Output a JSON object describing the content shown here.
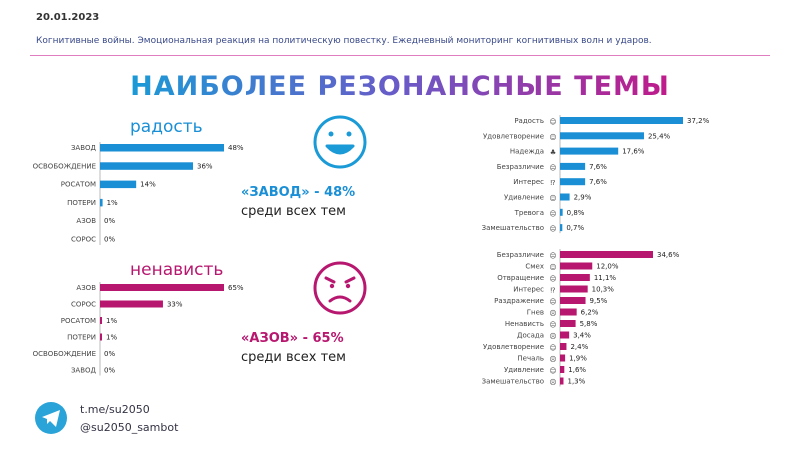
{
  "header": {
    "date": "20.01.2023",
    "subtitle": "Когнитивные войны. Эмоциональная реакция на политическую повестку. Ежедневный мониторинг когнитивных волн и ударов.",
    "title": "НАИБОЛЕЕ РЕЗОНАНСНЫЕ ТЕМЫ"
  },
  "colors": {
    "blue": "#1a8fd6",
    "magenta": "#b8176f"
  },
  "joy_section": {
    "title": "радость",
    "stat_value": "«ЗАВОД» - 48%",
    "stat_text": "среди всех тем",
    "icon": "smiling-face-icon"
  },
  "hate_section": {
    "title": "ненависть",
    "stat_value": "«АЗОВ» - 65%",
    "stat_text": "среди всех тем",
    "icon": "angry-face-icon"
  },
  "footer": {
    "link1": "t.me/su2050",
    "link2": "@su2050_sambot",
    "icon": "telegram-icon"
  },
  "chart_data": [
    {
      "type": "bar",
      "orientation": "horizontal",
      "title": "радость",
      "categories": [
        "ЗАВОД",
        "ОСВОБОЖДЕНИЕ",
        "РОСАТОМ",
        "ПОТЕРИ",
        "АЗОВ",
        "СОРОС"
      ],
      "values": [
        48,
        36,
        14,
        1,
        0,
        0
      ],
      "labels": [
        "48%",
        "36%",
        "14%",
        "1%",
        "0%",
        "0%"
      ],
      "max": 48,
      "color": "#1a8fd6"
    },
    {
      "type": "bar",
      "orientation": "horizontal",
      "title": "ненависть",
      "categories": [
        "АЗОВ",
        "СОРОС",
        "РОСАТОМ",
        "ПОТЕРИ",
        "ОСВОБОЖДЕНИЕ",
        "ЗАВОД"
      ],
      "values": [
        65,
        33,
        1,
        1,
        0,
        0
      ],
      "labels": [
        "65%",
        "33%",
        "1%",
        "1%",
        "0%",
        "0%"
      ],
      "max": 65,
      "color": "#b8176f"
    },
    {
      "type": "bar",
      "orientation": "horizontal",
      "categories": [
        "Радость",
        "Удовлетворение",
        "Надежда",
        "Безразличие",
        "Интерес",
        "Удивление",
        "Тревога",
        "Замешательство"
      ],
      "emoji": [
        "☺",
        "☺",
        "♣",
        "☹",
        "⁉",
        "☺",
        "☹",
        "☹"
      ],
      "values": [
        37.2,
        25.4,
        17.6,
        7.6,
        7.6,
        2.9,
        0.8,
        0.7
      ],
      "labels": [
        "37,2%",
        "25,4%",
        "17,6%",
        "7,6%",
        "7,6%",
        "2,9%",
        "0,8%",
        "0,7%"
      ],
      "max": 37.2,
      "color": "#1a8fd6"
    },
    {
      "type": "bar",
      "orientation": "horizontal",
      "categories": [
        "Безразличие",
        "Смех",
        "Отвращение",
        "Интерес",
        "Раздражение",
        "Гнев",
        "Ненависть",
        "Досада",
        "Удовлетворение",
        "Печаль",
        "Удивление",
        "Замешательство"
      ],
      "emoji": [
        "☹",
        "☺",
        "☹",
        "⁉",
        "☹",
        "☹",
        "☹",
        "☹",
        "☺",
        "☹",
        "☺",
        "☹"
      ],
      "values": [
        34.6,
        12.0,
        11.1,
        10.3,
        9.5,
        6.2,
        5.8,
        3.4,
        2.4,
        1.9,
        1.6,
        1.3
      ],
      "labels": [
        "34,6%",
        "12,0%",
        "11,1%",
        "10,3%",
        "9,5%",
        "6,2%",
        "5,8%",
        "3,4%",
        "2,4%",
        "1,9%",
        "1,6%",
        "1,3%"
      ],
      "max": 34.6,
      "color": "#b8176f"
    }
  ]
}
